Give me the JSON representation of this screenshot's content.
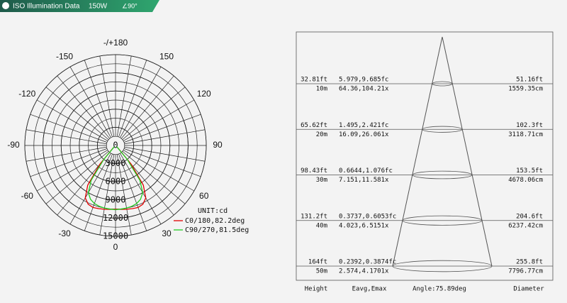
{
  "header": {
    "title": "ISO Illumination Data",
    "power": "150W",
    "angle": "∠90°"
  },
  "chart_data": {
    "type": "polar",
    "angles": [
      -45,
      -40,
      -35,
      -30,
      -25,
      -20,
      -15,
      -10,
      -5,
      0,
      5,
      10,
      15,
      20,
      25,
      30,
      35,
      40,
      45
    ],
    "series": [
      {
        "name": "C0/180,82.2deg",
        "color": "#e00000",
        "values": [
          500,
          4000,
          8000,
          10000,
          10700,
          10900,
          10800,
          10700,
          10600,
          10500,
          10600,
          10700,
          10800,
          10900,
          10700,
          10000,
          8000,
          4000,
          500
        ]
      },
      {
        "name": "C90/270,81.5deg",
        "color": "#22cc22",
        "values": [
          300,
          3000,
          7000,
          9000,
          9800,
          10200,
          10400,
          10500,
          10550,
          10600,
          10550,
          10500,
          10400,
          10200,
          9800,
          9000,
          7000,
          3000,
          300
        ]
      }
    ],
    "unit": "UNIT:cd",
    "rlim": [
      0,
      15000
    ],
    "rticks": [
      0,
      3000,
      6000,
      9000,
      12000,
      15000
    ],
    "angle_ticks": [
      0,
      30,
      60,
      90,
      120,
      150,
      {
        "value": 180,
        "label": "-/+180"
      },
      -150,
      -120,
      -90,
      -60,
      -30
    ]
  },
  "cone": {
    "rows": [
      {
        "height_ft": "32.81ft",
        "height_m": "10m",
        "e_fc": "5.979,9.685fc",
        "e_lx": "64.36,104.21x",
        "diameter_ft": "51.16ft",
        "diameter_cm": "1559.35cm"
      },
      {
        "height_ft": "65.62ft",
        "height_m": "20m",
        "e_fc": "1.495,2.421fc",
        "e_lx": "16.09,26.061x",
        "diameter_ft": "102.3ft",
        "diameter_cm": "3118.71cm"
      },
      {
        "height_ft": "98.43ft",
        "height_m": "30m",
        "e_fc": "0.6644,1.076fc",
        "e_lx": "7.151,11.581x",
        "diameter_ft": "153.5ft",
        "diameter_cm": "4678.06cm"
      },
      {
        "height_ft": "131.2ft",
        "height_m": "40m",
        "e_fc": "0.3737,0.6053fc",
        "e_lx": "4.023,6.5151x",
        "diameter_ft": "204.6ft",
        "diameter_cm": "6237.42cm"
      },
      {
        "height_ft": "164ft",
        "height_m": "50m",
        "e_fc": "0.2392,0.3874fc",
        "e_lx": "2.574,4.1701x",
        "diameter_ft": "255.8ft",
        "diameter_cm": "7796.77cm"
      }
    ],
    "footer": {
      "height": "Height",
      "illuminance": "Eavg,Emax",
      "angle": "Angle:75.89deg",
      "diameter": "Diameter"
    }
  }
}
